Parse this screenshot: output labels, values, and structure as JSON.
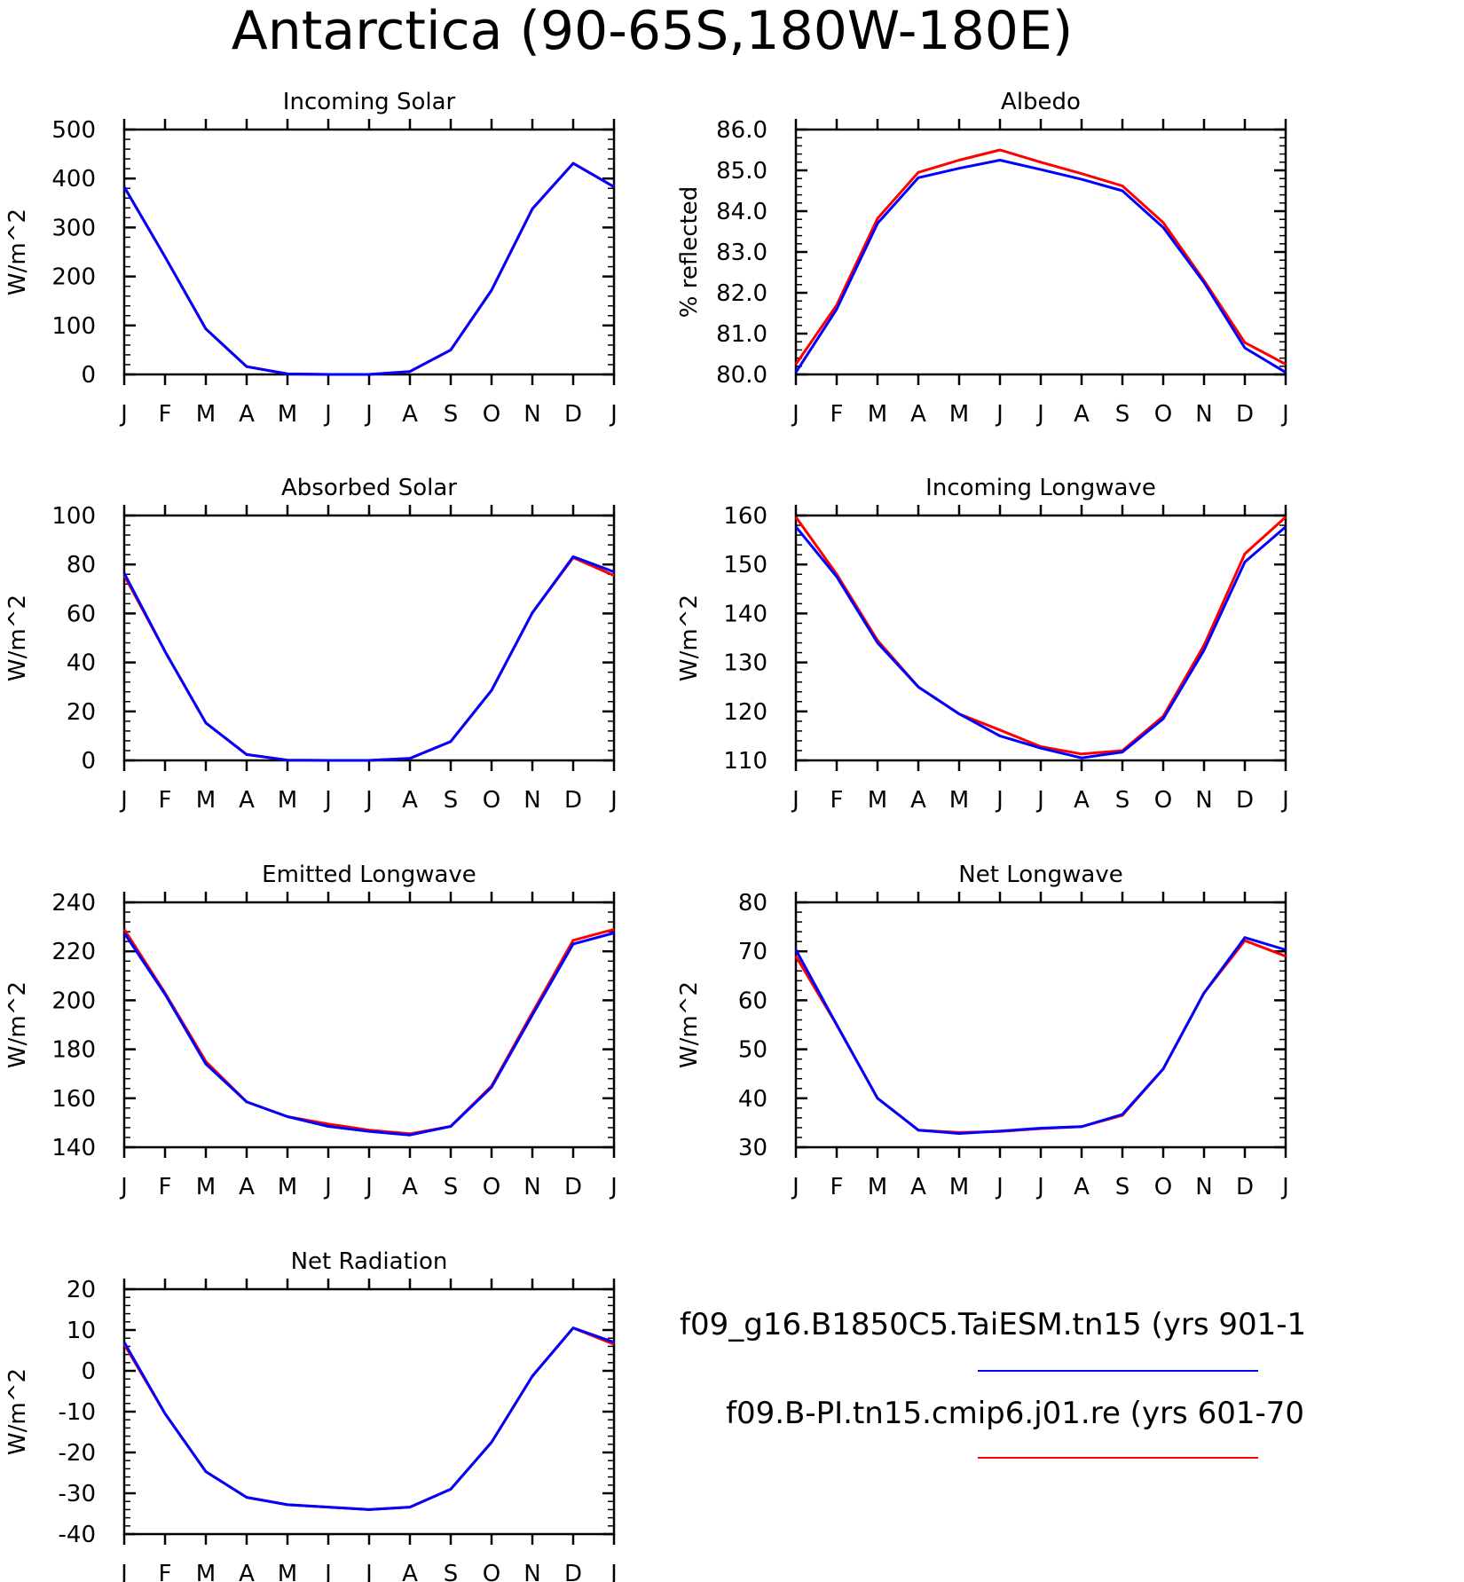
{
  "title": "Antarctica (90-65S,180W-180E)",
  "legend": [
    {
      "label": "f09_g16.B1850C5.TaiESM.tn15 (yrs 901-1",
      "color": "#0000ff"
    },
    {
      "label": "f09.B-PI.tn15.cmip6.j01.re (yrs 601-70",
      "color": "#ff0000"
    }
  ],
  "chart_data": [
    {
      "type": "line",
      "title": "Incoming Solar",
      "ylabel": "W/m^2",
      "categories": [
        "J",
        "F",
        "M",
        "A",
        "M",
        "J",
        "J",
        "A",
        "S",
        "O",
        "N",
        "D",
        "J"
      ],
      "ylim": [
        0,
        500
      ],
      "yticks": [
        "0",
        "100",
        "200",
        "300",
        "400",
        "500"
      ],
      "series": [
        {
          "color": "#ff0000",
          "values": [
            383,
            240,
            93,
            16,
            1,
            0,
            0,
            6,
            50,
            172,
            338,
            431,
            383
          ]
        },
        {
          "color": "#0000ff",
          "values": [
            383,
            240,
            93,
            16,
            1,
            0,
            0,
            6,
            50,
            172,
            338,
            431,
            383
          ]
        }
      ]
    },
    {
      "type": "line",
      "title": "Albedo",
      "ylabel": "% reflected",
      "categories": [
        "J",
        "F",
        "M",
        "A",
        "M",
        "J",
        "J",
        "A",
        "S",
        "O",
        "N",
        "D",
        "J"
      ],
      "ylim": [
        80,
        86
      ],
      "yticks": [
        "80.0",
        "81.0",
        "82.0",
        "83.0",
        "84.0",
        "85.0",
        "86.0"
      ],
      "series": [
        {
          "color": "#ff0000",
          "values": [
            80.25,
            81.7,
            83.82,
            84.95,
            85.25,
            85.5,
            85.2,
            84.92,
            84.62,
            83.72,
            82.3,
            80.78,
            80.25
          ]
        },
        {
          "color": "#0000ff",
          "values": [
            80.05,
            81.6,
            83.7,
            84.82,
            85.05,
            85.25,
            85.02,
            84.78,
            84.5,
            83.6,
            82.25,
            80.65,
            80.05
          ]
        }
      ]
    },
    {
      "type": "line",
      "title": "Absorbed Solar",
      "ylabel": "W/m^2",
      "categories": [
        "J",
        "F",
        "M",
        "A",
        "M",
        "J",
        "J",
        "A",
        "S",
        "O",
        "N",
        "D",
        "J"
      ],
      "ylim": [
        0,
        100
      ],
      "yticks": [
        "0",
        "20",
        "40",
        "60",
        "80",
        "100"
      ],
      "series": [
        {
          "color": "#ff0000",
          "values": [
            75.5,
            44.5,
            15.3,
            2.4,
            0.1,
            0,
            0,
            0.8,
            7.7,
            28.6,
            60.3,
            82.8,
            75.5
          ]
        },
        {
          "color": "#0000ff",
          "values": [
            76.5,
            44.5,
            15.3,
            2.4,
            0.1,
            0,
            0,
            0.8,
            7.7,
            28.6,
            60.3,
            83.2,
            77
          ]
        }
      ]
    },
    {
      "type": "line",
      "title": "Incoming Longwave",
      "ylabel": "W/m^2",
      "categories": [
        "J",
        "F",
        "M",
        "A",
        "M",
        "J",
        "J",
        "A",
        "S",
        "O",
        "N",
        "D",
        "J"
      ],
      "ylim": [
        110,
        160
      ],
      "yticks": [
        "110",
        "120",
        "130",
        "140",
        "150",
        "160"
      ],
      "series": [
        {
          "color": "#ff0000",
          "values": [
            159.7,
            148,
            134.5,
            125,
            119.5,
            116.2,
            112.8,
            111.3,
            112,
            119,
            133.5,
            152.2,
            159.7
          ]
        },
        {
          "color": "#0000ff",
          "values": [
            157.7,
            147.5,
            134,
            125,
            119.5,
            115,
            112.5,
            110.5,
            111.7,
            118.5,
            132.5,
            150.5,
            157.7
          ]
        }
      ]
    },
    {
      "type": "line",
      "title": "Emitted Longwave",
      "ylabel": "W/m^2",
      "categories": [
        "J",
        "F",
        "M",
        "A",
        "M",
        "J",
        "J",
        "A",
        "S",
        "O",
        "N",
        "D",
        "J"
      ],
      "ylim": [
        140,
        240
      ],
      "yticks": [
        "140",
        "160",
        "180",
        "200",
        "220",
        "240"
      ],
      "series": [
        {
          "color": "#ff0000",
          "values": [
            229,
            203,
            175,
            158.5,
            152.5,
            149.5,
            147,
            145.5,
            148.5,
            165,
            195,
            224.5,
            229
          ]
        },
        {
          "color": "#0000ff",
          "values": [
            227.5,
            202.5,
            174,
            158.5,
            152.5,
            148.5,
            146.5,
            145,
            148.5,
            164.5,
            194,
            223,
            227.5
          ]
        }
      ]
    },
    {
      "type": "line",
      "title": "Net Longwave",
      "ylabel": "W/m^2",
      "categories": [
        "J",
        "F",
        "M",
        "A",
        "M",
        "J",
        "J",
        "A",
        "S",
        "O",
        "N",
        "D",
        "J"
      ],
      "ylim": [
        30,
        80
      ],
      "yticks": [
        "30",
        "40",
        "50",
        "60",
        "70",
        "80"
      ],
      "series": [
        {
          "color": "#ff0000",
          "values": [
            69,
            55,
            40,
            33.5,
            33,
            33.2,
            33.8,
            34.2,
            36.5,
            46,
            61.5,
            72.2,
            69
          ]
        },
        {
          "color": "#0000ff",
          "values": [
            70.3,
            55,
            40,
            33.5,
            32.8,
            33.3,
            33.9,
            34.2,
            36.7,
            46,
            61.5,
            72.8,
            70.3
          ]
        }
      ]
    },
    {
      "type": "line",
      "title": "Net Radiation",
      "ylabel": "W/m^2",
      "categories": [
        "J",
        "F",
        "M",
        "A",
        "M",
        "J",
        "J",
        "A",
        "S",
        "O",
        "N",
        "D",
        "J"
      ],
      "ylim": [
        -40,
        20
      ],
      "yticks": [
        "-40",
        "-30",
        "-20",
        "-10",
        "0",
        "10",
        "20"
      ],
      "series": [
        {
          "color": "#ff0000",
          "values": [
            6.5,
            -10.5,
            -24.7,
            -31,
            -32.8,
            -33.4,
            -34,
            -33.4,
            -29,
            -17.5,
            -1.3,
            10.5,
            6.5
          ]
        },
        {
          "color": "#0000ff",
          "values": [
            7,
            -10.5,
            -24.7,
            -31,
            -32.8,
            -33.4,
            -34,
            -33.4,
            -29,
            -17.5,
            -1.3,
            10.5,
            7
          ]
        }
      ]
    }
  ]
}
